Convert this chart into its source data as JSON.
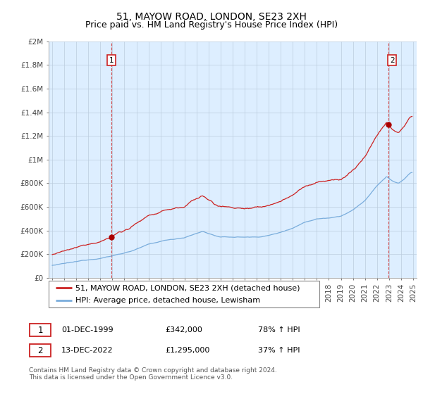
{
  "title": "51, MAYOW ROAD, LONDON, SE23 2XH",
  "subtitle": "Price paid vs. HM Land Registry's House Price Index (HPI)",
  "ylabel_ticks": [
    "£0",
    "£200K",
    "£400K",
    "£600K",
    "£800K",
    "£1M",
    "£1.2M",
    "£1.4M",
    "£1.6M",
    "£1.8M",
    "£2M"
  ],
  "ylim": [
    0,
    2000000
  ],
  "xlim_start": 1994.7,
  "xlim_end": 2025.3,
  "legend_line1": "51, MAYOW ROAD, LONDON, SE23 2XH (detached house)",
  "legend_line2": "HPI: Average price, detached house, Lewisham",
  "transaction1_date": "01-DEC-1999",
  "transaction1_price": "£342,000",
  "transaction1_pct": "78% ↑ HPI",
  "transaction2_date": "13-DEC-2022",
  "transaction2_price": "£1,295,000",
  "transaction2_pct": "37% ↑ HPI",
  "footnote": "Contains HM Land Registry data © Crown copyright and database right 2024.\nThis data is licensed under the Open Government Licence v3.0.",
  "line_color_red": "#cc2222",
  "line_color_blue": "#7aaddc",
  "marker_color_red": "#aa0000",
  "bg_color": "#ddeeff",
  "background_color": "#ffffff",
  "grid_color": "#bbccdd",
  "title_fontsize": 10,
  "subtitle_fontsize": 9,
  "tick_fontsize": 7.5,
  "legend_fontsize": 8,
  "footnote_fontsize": 6.5
}
